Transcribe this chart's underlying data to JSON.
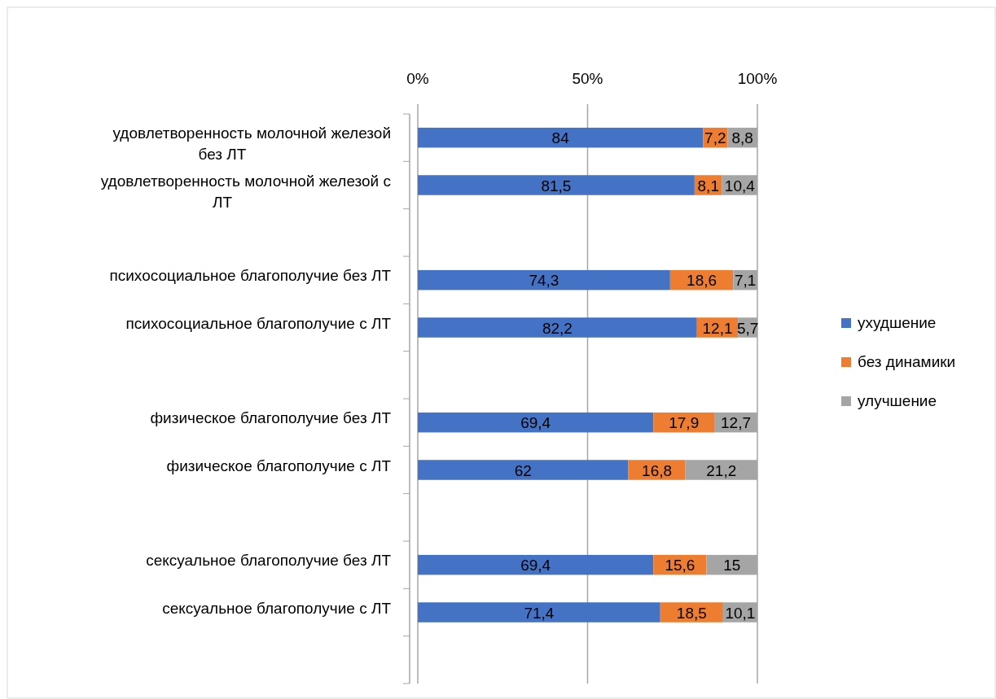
{
  "chart_data": {
    "type": "bar",
    "orientation": "horizontal",
    "stacked": true,
    "categories": [
      "удовлетворенность молочной железой без ЛТ",
      "удовлетворенность молочной железой с ЛТ",
      null,
      "психосоциальное благополучие без ЛТ",
      "психосоциальное благополучие с ЛТ",
      null,
      "физическое благополучие без ЛТ",
      "физическое благополучие с ЛТ",
      null,
      "сексуальное благополучие без ЛТ",
      "сексуальное благополучие с ЛТ",
      null
    ],
    "series": [
      {
        "name": "ухудшение",
        "color": "#4472c4",
        "values": [
          84,
          81.5,
          null,
          74.3,
          82.2,
          null,
          69.4,
          62,
          null,
          69.4,
          71.4,
          null
        ],
        "value_labels": [
          "84",
          "81,5",
          null,
          "74,3",
          "82,2",
          null,
          "69,4",
          "62",
          null,
          "69,4",
          "71,4",
          null
        ]
      },
      {
        "name": "без динамики",
        "color": "#ed7d31",
        "values": [
          7.2,
          8.1,
          null,
          18.6,
          12.1,
          null,
          17.9,
          16.8,
          null,
          15.6,
          18.5,
          null
        ],
        "value_labels": [
          "7,2",
          "8,1",
          null,
          "18,6",
          "12,1",
          null,
          "17,9",
          "16,8",
          null,
          "15,6",
          "18,5",
          null
        ]
      },
      {
        "name": "улучшение",
        "color": "#a5a5a5",
        "values": [
          8.8,
          10.4,
          null,
          7.1,
          5.7,
          null,
          12.7,
          21.2,
          null,
          15,
          10.1,
          null
        ],
        "value_labels": [
          "8,8",
          "10,4",
          null,
          "7,1",
          "5,7",
          null,
          "12,7",
          "21,2",
          null,
          "15",
          "10,1",
          null
        ]
      }
    ],
    "xlim": [
      0,
      100
    ],
    "xticks": [
      {
        "value": 0,
        "label": "0%"
      },
      {
        "value": 50,
        "label": "50%"
      },
      {
        "value": 100,
        "label": "100%"
      }
    ],
    "grid": "x",
    "legend": "right"
  }
}
